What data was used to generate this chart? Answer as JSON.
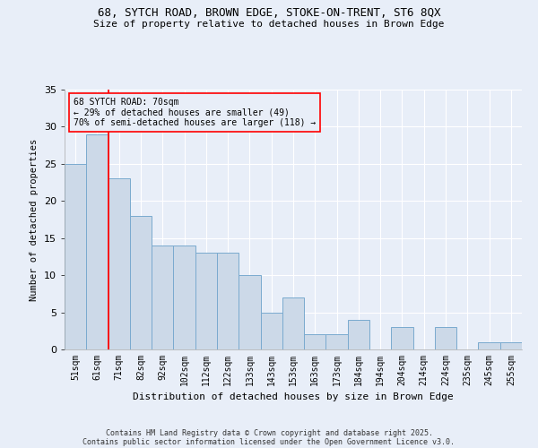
{
  "title1": "68, SYTCH ROAD, BROWN EDGE, STOKE-ON-TRENT, ST6 8QX",
  "title2": "Size of property relative to detached houses in Brown Edge",
  "xlabel": "Distribution of detached houses by size in Brown Edge",
  "ylabel": "Number of detached properties",
  "categories": [
    "51sqm",
    "61sqm",
    "71sqm",
    "82sqm",
    "92sqm",
    "102sqm",
    "112sqm",
    "122sqm",
    "133sqm",
    "143sqm",
    "153sqm",
    "163sqm",
    "173sqm",
    "184sqm",
    "194sqm",
    "204sqm",
    "214sqm",
    "224sqm",
    "235sqm",
    "245sqm",
    "255sqm"
  ],
  "values": [
    25,
    29,
    23,
    18,
    14,
    14,
    13,
    13,
    10,
    5,
    7,
    2,
    2,
    4,
    0,
    3,
    0,
    3,
    0,
    1,
    1
  ],
  "bar_color": "#ccd9e8",
  "bar_edge_color": "#7aaacf",
  "red_line_x": 1.5,
  "annotation_line1": "68 SYTCH ROAD: 70sqm",
  "annotation_line2": "← 29% of detached houses are smaller (49)",
  "annotation_line3": "70% of semi-detached houses are larger (118) →",
  "ylim": [
    0,
    35
  ],
  "yticks": [
    0,
    5,
    10,
    15,
    20,
    25,
    30,
    35
  ],
  "background_color": "#e8eef8",
  "grid_color": "#ffffff",
  "footer1": "Contains HM Land Registry data © Crown copyright and database right 2025.",
  "footer2": "Contains public sector information licensed under the Open Government Licence v3.0."
}
